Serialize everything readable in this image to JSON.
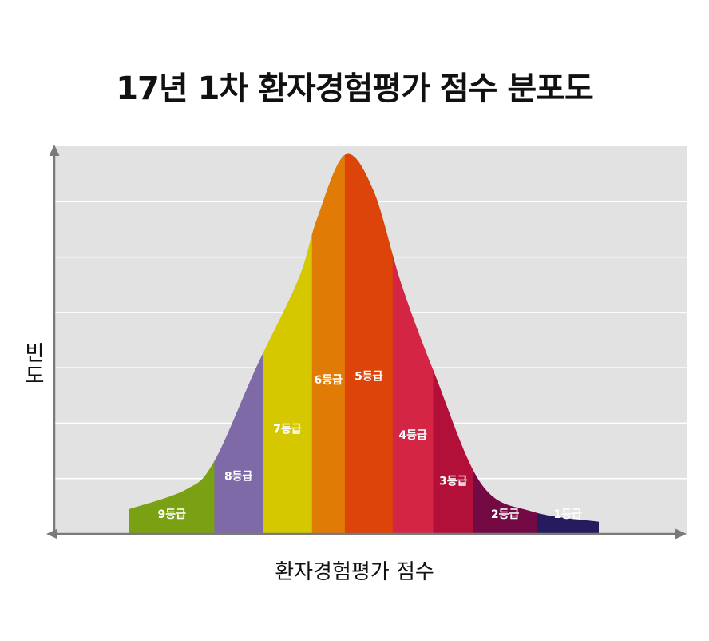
{
  "chart_data": {
    "type": "area",
    "title": "17년 1차 환자경험평가 점수 분포도",
    "xlabel": "환자경험평가 점수",
    "ylabel": "빈도",
    "grid": true,
    "legend": "none",
    "ylim": [
      0,
      7
    ],
    "y_gridlines": [
      1,
      2,
      3,
      4,
      5,
      6
    ],
    "curve": [
      [
        0.0,
        0.45
      ],
      [
        0.12,
        0.8
      ],
      [
        0.18,
        1.3
      ],
      [
        0.27,
        3.0
      ],
      [
        0.36,
        4.6
      ],
      [
        0.4,
        5.7
      ],
      [
        0.46,
        6.85
      ],
      [
        0.52,
        6.2
      ],
      [
        0.58,
        4.5
      ],
      [
        0.65,
        2.9
      ],
      [
        0.75,
        0.9
      ],
      [
        0.86,
        0.4
      ],
      [
        1.0,
        0.22
      ]
    ],
    "grades": [
      {
        "label": "9등급",
        "x_start": 0.0,
        "x_end": 0.181,
        "color": "#7aa013"
      },
      {
        "label": "8등급",
        "x_start": 0.181,
        "x_end": 0.284,
        "color": "#7e6aa7"
      },
      {
        "label": "7등급",
        "x_start": 0.284,
        "x_end": 0.389,
        "color": "#d6c800"
      },
      {
        "label": "6등급",
        "x_start": 0.389,
        "x_end": 0.459,
        "color": "#e07b05"
      },
      {
        "label": "5등급",
        "x_start": 0.459,
        "x_end": 0.561,
        "color": "#dc4409"
      },
      {
        "label": "4등급",
        "x_start": 0.561,
        "x_end": 0.647,
        "color": "#d52545"
      },
      {
        "label": "3등급",
        "x_start": 0.647,
        "x_end": 0.733,
        "color": "#b31039"
      },
      {
        "label": "2등급",
        "x_start": 0.733,
        "x_end": 0.868,
        "color": "#740a44"
      },
      {
        "label": "1등급",
        "x_start": 0.868,
        "x_end": 1.0,
        "color": "#261b5e"
      }
    ]
  }
}
